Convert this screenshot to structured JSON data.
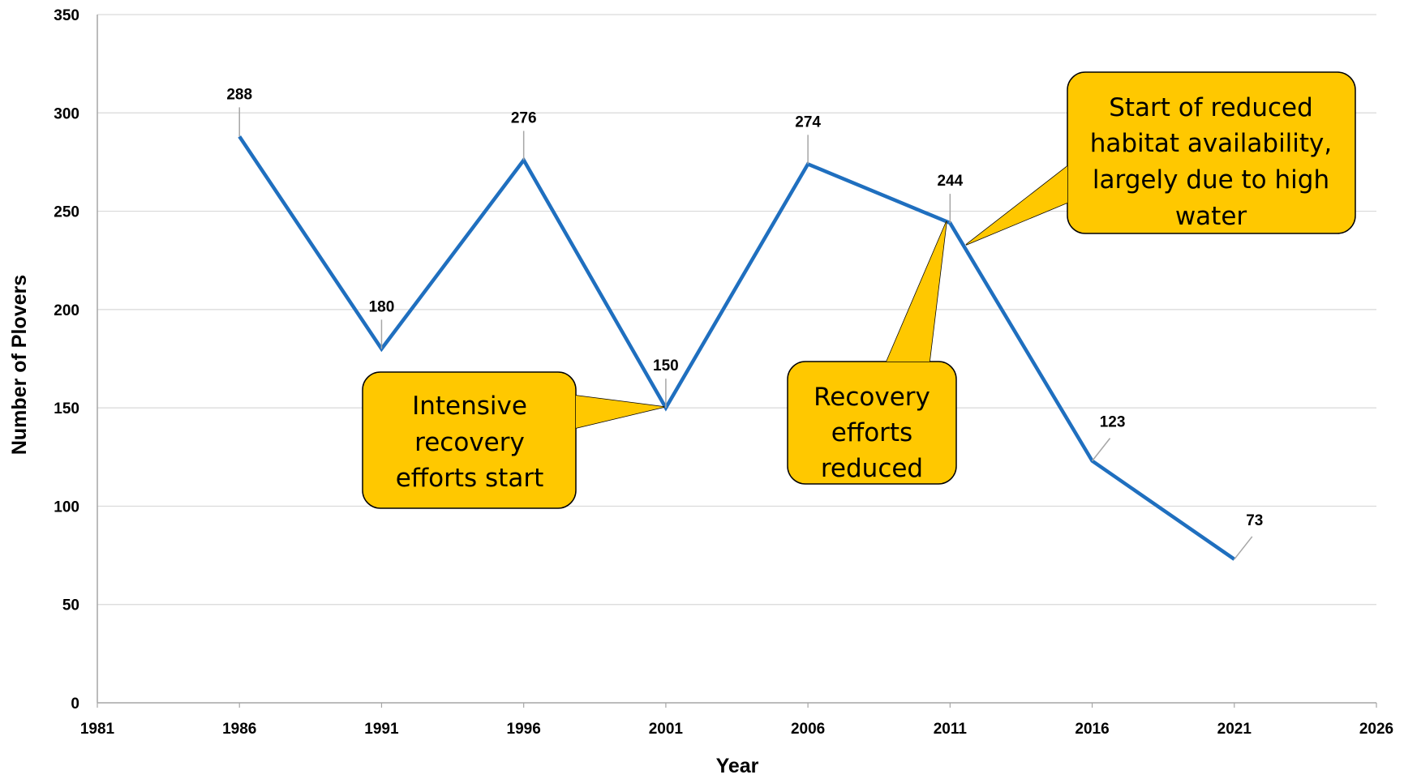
{
  "chart_data": {
    "type": "line",
    "title": "",
    "xlabel": "Year",
    "ylabel": "Number of Plovers",
    "xlim": [
      1981,
      2026
    ],
    "ylim": [
      0,
      350
    ],
    "xticks": [
      1981,
      1986,
      1991,
      1996,
      2001,
      2006,
      2011,
      2016,
      2021,
      2026
    ],
    "yticks": [
      0,
      50,
      100,
      150,
      200,
      250,
      300,
      350
    ],
    "grid": "horizontal",
    "legend": "none",
    "series": [
      {
        "color": "#1f6fbf",
        "points": [
          {
            "x": 1986,
            "y": 288
          },
          {
            "x": 1991,
            "y": 180
          },
          {
            "x": 1996,
            "y": 276
          },
          {
            "x": 2001,
            "y": 150
          },
          {
            "x": 2006,
            "y": 274
          },
          {
            "x": 2011,
            "y": 244
          },
          {
            "x": 2016,
            "y": 123
          },
          {
            "x": 2021,
            "y": 73
          }
        ]
      }
    ],
    "annotations": [
      {
        "name": "callout-intensive-recovery",
        "lines": [
          "Intensive",
          "recovery",
          "efforts start"
        ],
        "x": 2001,
        "y": 150
      },
      {
        "name": "callout-recovery-reduced",
        "lines": [
          "Recovery",
          "efforts",
          "reduced"
        ],
        "x": 2011,
        "y": 244
      },
      {
        "name": "callout-habitat-reduced",
        "lines": [
          "Start of reduced",
          "habitat availability,",
          "largely due to high",
          "water"
        ],
        "x": 2011,
        "y": 244
      }
    ],
    "callout_color": "#ffc800"
  }
}
